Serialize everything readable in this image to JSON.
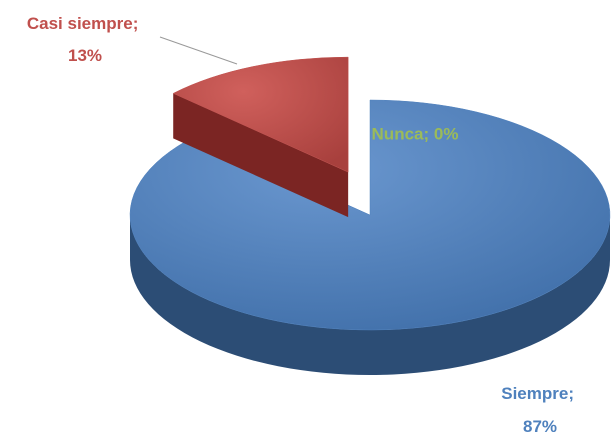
{
  "chart_data": {
    "type": "pie3d",
    "values": [
      87,
      13,
      0
    ],
    "value_labels": [
      "Siempre; 87%",
      "Casi siempre; 13%",
      "Nunca; 0%"
    ],
    "colors": [
      "#4f81bd",
      "#c0504d",
      "#9bbb59"
    ],
    "exploded": [
      false,
      true,
      false
    ]
  }
}
